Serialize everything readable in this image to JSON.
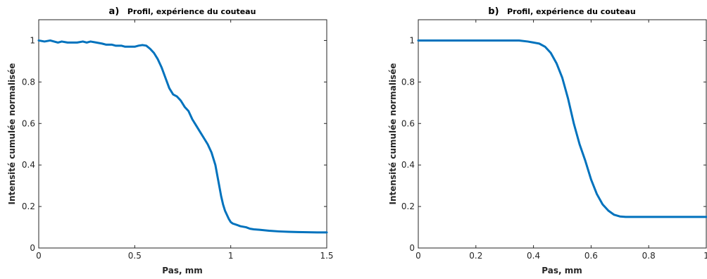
{
  "chart_data": [
    {
      "type": "line",
      "panel_letter": "a)",
      "title": "Profil, expérience du couteau",
      "xlabel": "Pas, mm",
      "ylabel": "Intensité cumulée normalisée",
      "xlim": [
        0,
        1.5
      ],
      "ylim": [
        0,
        1.1
      ],
      "xticks": [
        0,
        0.5,
        1,
        1.5
      ],
      "xtick_labels": [
        "0",
        "0.5",
        "1",
        "1.5"
      ],
      "yticks": [
        0,
        0.2,
        0.4,
        0.6,
        0.8,
        1
      ],
      "ytick_labels": [
        "0",
        "0.2",
        "0.4",
        "0.6",
        "0.8",
        "1"
      ],
      "grid": false,
      "line_color": "#0072BD",
      "series": [
        {
          "x": [
            0,
            0.03,
            0.06,
            0.08,
            0.1,
            0.12,
            0.15,
            0.18,
            0.2,
            0.23,
            0.25,
            0.27,
            0.3,
            0.33,
            0.35,
            0.38,
            0.4,
            0.43,
            0.45,
            0.48,
            0.5,
            0.52,
            0.54,
            0.56,
            0.58,
            0.6,
            0.62,
            0.64,
            0.66,
            0.68,
            0.7,
            0.72,
            0.74,
            0.76,
            0.78,
            0.8,
            0.82,
            0.84,
            0.86,
            0.88,
            0.9,
            0.92,
            0.94,
            0.95,
            0.96,
            0.97,
            0.98,
            0.99,
            1.0,
            1.01,
            1.02,
            1.03,
            1.05,
            1.08,
            1.1,
            1.12,
            1.15,
            1.2,
            1.25,
            1.3,
            1.35,
            1.4,
            1.45,
            1.5
          ],
          "y": [
            1.0,
            0.995,
            1.0,
            0.995,
            0.99,
            0.995,
            0.99,
            0.99,
            0.99,
            0.995,
            0.99,
            0.995,
            0.99,
            0.985,
            0.98,
            0.98,
            0.975,
            0.975,
            0.97,
            0.97,
            0.97,
            0.975,
            0.978,
            0.975,
            0.96,
            0.94,
            0.91,
            0.87,
            0.82,
            0.77,
            0.74,
            0.73,
            0.71,
            0.68,
            0.66,
            0.62,
            0.59,
            0.56,
            0.53,
            0.5,
            0.46,
            0.4,
            0.3,
            0.25,
            0.21,
            0.18,
            0.16,
            0.14,
            0.125,
            0.118,
            0.115,
            0.112,
            0.105,
            0.1,
            0.093,
            0.09,
            0.088,
            0.083,
            0.08,
            0.078,
            0.077,
            0.076,
            0.075,
            0.075
          ]
        }
      ]
    },
    {
      "type": "line",
      "panel_letter": "b)",
      "title": "Profil, expérience du couteau",
      "xlabel": "Pas, mm",
      "ylabel": "Intensité cumulée normalisée",
      "xlim": [
        0,
        1
      ],
      "ylim": [
        0,
        1.1
      ],
      "xticks": [
        0,
        0.2,
        0.4,
        0.6,
        0.8,
        1
      ],
      "xtick_labels": [
        "0",
        "0.2",
        "0.4",
        "0.6",
        "0.8",
        "1"
      ],
      "yticks": [
        0,
        0.2,
        0.4,
        0.6,
        0.8,
        1
      ],
      "ytick_labels": [
        "0",
        "0.2",
        "0.4",
        "0.6",
        "0.8",
        "1"
      ],
      "grid": false,
      "line_color": "#0072BD",
      "series": [
        {
          "x": [
            0,
            0.05,
            0.1,
            0.15,
            0.2,
            0.25,
            0.3,
            0.35,
            0.38,
            0.4,
            0.42,
            0.44,
            0.46,
            0.48,
            0.5,
            0.52,
            0.54,
            0.56,
            0.58,
            0.6,
            0.62,
            0.64,
            0.66,
            0.68,
            0.7,
            0.72,
            0.75,
            0.8,
            0.85,
            0.9,
            0.95,
            1.0
          ],
          "y": [
            1.0,
            1.0,
            1.0,
            1.0,
            1.0,
            1.0,
            1.0,
            1.0,
            0.995,
            0.99,
            0.985,
            0.97,
            0.94,
            0.89,
            0.82,
            0.72,
            0.6,
            0.5,
            0.42,
            0.33,
            0.26,
            0.21,
            0.18,
            0.16,
            0.152,
            0.15,
            0.15,
            0.15,
            0.15,
            0.15,
            0.15,
            0.15
          ]
        }
      ]
    }
  ]
}
